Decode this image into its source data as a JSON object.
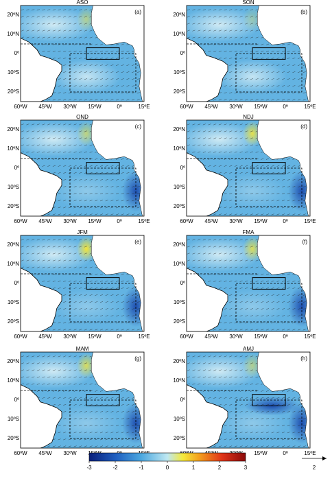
{
  "panels": [
    {
      "title": "ASO",
      "label": "(a)"
    },
    {
      "title": "SON",
      "label": "(b)"
    },
    {
      "title": "OND",
      "label": "(c)"
    },
    {
      "title": "NDJ",
      "label": "(d)"
    },
    {
      "title": "JFM",
      "label": "(e)"
    },
    {
      "title": "FMA",
      "label": "(f)"
    },
    {
      "title": "MAM",
      "label": "(g)"
    },
    {
      "title": "AMJ",
      "label": "(h)"
    }
  ],
  "lat_labels": [
    "20ºN",
    "10ºN",
    "0º",
    "10ºS",
    "20ºS"
  ],
  "lon_labels": [
    "60ºW",
    "45ºW",
    "30ºW",
    "15ºW",
    "0º",
    "15ºE"
  ],
  "colorbar": {
    "lim": [
      -3,
      3
    ],
    "ticks": [
      -3,
      -2,
      -1,
      0,
      1,
      2,
      3
    ]
  },
  "vector_scale": "2"
}
